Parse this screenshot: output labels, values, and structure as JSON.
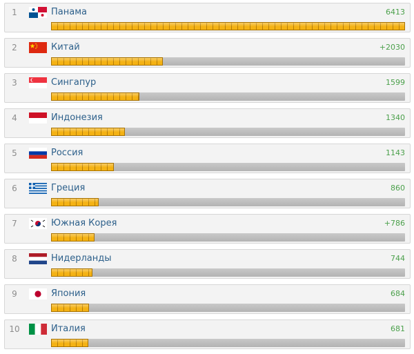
{
  "ranking": {
    "max_value": 6413,
    "items": [
      {
        "rank": "1",
        "country": "Панама",
        "value": "6413",
        "amount": 6413,
        "flag": "panama-flag"
      },
      {
        "rank": "2",
        "country": "Китай",
        "value": "+2030",
        "amount": 2030,
        "flag": "china-flag"
      },
      {
        "rank": "3",
        "country": "Сингапур",
        "value": "1599",
        "amount": 1599,
        "flag": "singapore-flag"
      },
      {
        "rank": "4",
        "country": "Индонезия",
        "value": "1340",
        "amount": 1340,
        "flag": "indonesia-flag"
      },
      {
        "rank": "5",
        "country": "Россия",
        "value": "1143",
        "amount": 1143,
        "flag": "russia-flag"
      },
      {
        "rank": "6",
        "country": "Греция",
        "value": "860",
        "amount": 860,
        "flag": "greece-flag"
      },
      {
        "rank": "7",
        "country": "Южная Корея",
        "value": "+786",
        "amount": 786,
        "flag": "south-korea-flag"
      },
      {
        "rank": "8",
        "country": "Нидерланды",
        "value": "744",
        "amount": 744,
        "flag": "netherlands-flag"
      },
      {
        "rank": "9",
        "country": "Япония",
        "value": "684",
        "amount": 684,
        "flag": "japan-flag"
      },
      {
        "rank": "10",
        "country": "Италия",
        "value": "681",
        "amount": 681,
        "flag": "italy-flag"
      }
    ]
  },
  "colors": {
    "bar_fill": "#f2ab0f",
    "bar_track": "#bdbdbd",
    "country_text": "#2c5f8a",
    "value_text": "#4ba04b"
  }
}
